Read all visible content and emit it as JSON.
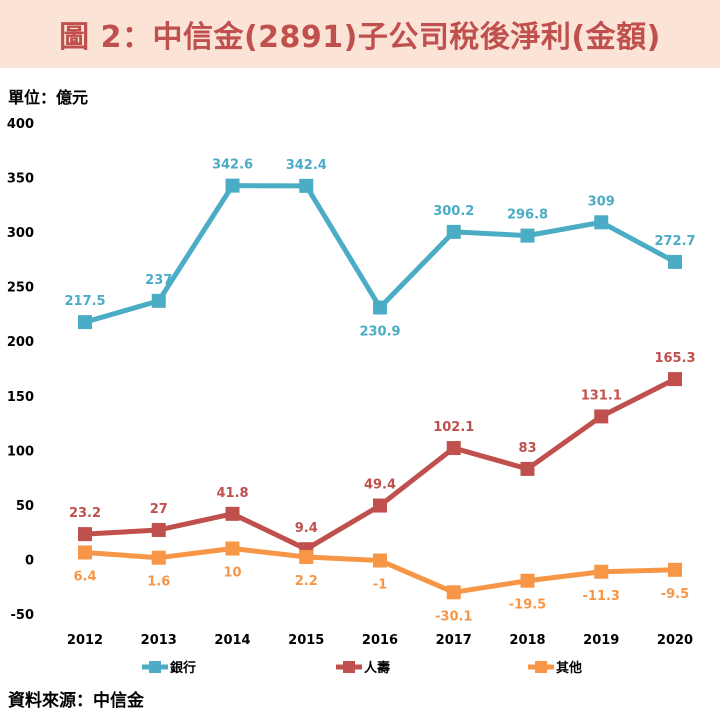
{
  "header": {
    "title": "圖 2：中信金(2891)子公司稅後淨利(金額)"
  },
  "unit_label": "單位：億元",
  "source_label": "資料來源：中信金",
  "colors": {
    "title": "#c0504d",
    "title_bg": "#fbe3d6"
  },
  "chart_data": {
    "type": "line",
    "categories": [
      "2012",
      "2013",
      "2014",
      "2015",
      "2016",
      "2017",
      "2018",
      "2019",
      "2020"
    ],
    "ylim": [
      -50,
      400
    ],
    "yticks": [
      "400",
      "350",
      "300",
      "250",
      "200",
      "150",
      "100",
      "50",
      "0",
      "-50"
    ],
    "ytick_values": [
      400,
      350,
      300,
      250,
      200,
      150,
      100,
      50,
      0,
      -50
    ],
    "grid": false,
    "legend_position": "bottom",
    "series": [
      {
        "name": "銀行",
        "color": "#4bacc6",
        "values": [
          217.5,
          237,
          342.6,
          342.4,
          230.9,
          300.2,
          296.8,
          309,
          272.7
        ],
        "labels": [
          "217.5",
          "237",
          "342.6",
          "342.4",
          "230.9",
          "300.2",
          "296.8",
          "309",
          "272.7"
        ]
      },
      {
        "name": "人壽",
        "color": "#c0504d",
        "values": [
          23.2,
          27,
          41.8,
          9.4,
          49.4,
          102.1,
          83,
          131.1,
          165.3
        ],
        "labels": [
          "23.2",
          "27",
          "41.8",
          "9.4",
          "49.4",
          "102.1",
          "83",
          "131.1",
          "165.3"
        ]
      },
      {
        "name": "其他",
        "color": "#f79646",
        "values": [
          6.4,
          1.6,
          10,
          2.2,
          -1,
          -30.1,
          -19.5,
          -11.3,
          -9.5
        ],
        "labels": [
          "6.4",
          "1.6",
          "10",
          "2.2",
          "-1",
          "-30.1",
          "-19.5",
          "-11.3",
          "-9.5"
        ]
      }
    ]
  }
}
